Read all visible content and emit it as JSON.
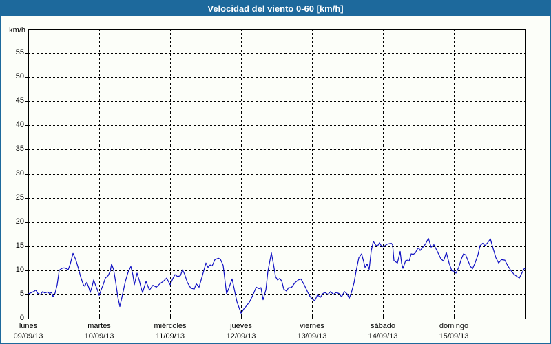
{
  "title": "Velocidad del viento 0-60 [km/h]",
  "y_axis": {
    "unit": "km/h",
    "ticks": [
      0,
      5,
      10,
      15,
      20,
      25,
      30,
      35,
      40,
      45,
      50,
      55
    ],
    "max": 60
  },
  "x_axis": {
    "days": [
      {
        "name": "lunes",
        "date": "09/09/13"
      },
      {
        "name": "martes",
        "date": "10/09/13"
      },
      {
        "name": "miércoles",
        "date": "11/09/13"
      },
      {
        "name": "jueves",
        "date": "12/09/13"
      },
      {
        "name": "viernes",
        "date": "13/09/13"
      },
      {
        "name": "sábado",
        "date": "14/09/13"
      },
      {
        "name": "domingo",
        "date": "15/09/13"
      }
    ]
  },
  "colors": {
    "titlebar": "#1d699c",
    "border": "#1d699c",
    "background": "#fcfef9",
    "grid": "#000000",
    "axis": "#000000",
    "text": "#000000",
    "title_text": "#ffffff",
    "line": "#0f0fc3"
  },
  "chart_data": {
    "type": "line",
    "title": "Velocidad del viento 0-60 [km/h]",
    "ylabel": "km/h",
    "ylim": [
      0,
      60
    ],
    "grid": "dashed, every 5 km/h horizontal, every day vertical",
    "legend": "none",
    "x_unit": "days since Monday 09/09/13 00:00 (0 to 7)",
    "categories": [
      "lunes 09/09/13",
      "martes 10/09/13",
      "miércoles 11/09/13",
      "jueves 12/09/13",
      "viernes 13/09/13",
      "sábado 14/09/13",
      "domingo 15/09/13"
    ],
    "series": [
      {
        "name": "Velocidad del viento",
        "points": [
          [
            0.0,
            5.1
          ],
          [
            0.049,
            5.4
          ],
          [
            0.078,
            5.6
          ],
          [
            0.107,
            5.9
          ],
          [
            0.136,
            5.2
          ],
          [
            0.175,
            5.0
          ],
          [
            0.204,
            5.6
          ],
          [
            0.233,
            5.3
          ],
          [
            0.272,
            5.5
          ],
          [
            0.301,
            5.2
          ],
          [
            0.33,
            5.4
          ],
          [
            0.35,
            4.5
          ],
          [
            0.379,
            5.3
          ],
          [
            0.408,
            7.0
          ],
          [
            0.437,
            10.0
          ],
          [
            0.476,
            10.4
          ],
          [
            0.505,
            10.5
          ],
          [
            0.544,
            10.3
          ],
          [
            0.563,
            10.1
          ],
          [
            0.592,
            11.3
          ],
          [
            0.631,
            13.5
          ],
          [
            0.67,
            12.2
          ],
          [
            0.709,
            10.3
          ],
          [
            0.738,
            8.7
          ],
          [
            0.777,
            7.0
          ],
          [
            0.796,
            6.7
          ],
          [
            0.825,
            7.5
          ],
          [
            0.854,
            6.4
          ],
          [
            0.874,
            5.4
          ],
          [
            0.903,
            6.8
          ],
          [
            0.922,
            8.0
          ],
          [
            0.951,
            6.8
          ],
          [
            0.971,
            6.1
          ],
          [
            1.0,
            4.8
          ],
          [
            1.029,
            6.0
          ],
          [
            1.058,
            7.1
          ],
          [
            1.087,
            8.4
          ],
          [
            1.126,
            8.9
          ],
          [
            1.155,
            9.8
          ],
          [
            1.175,
            11.3
          ],
          [
            1.204,
            10.1
          ],
          [
            1.233,
            7.5
          ],
          [
            1.262,
            4.5
          ],
          [
            1.291,
            2.5
          ],
          [
            1.32,
            4.4
          ],
          [
            1.369,
            7.7
          ],
          [
            1.408,
            9.6
          ],
          [
            1.447,
            10.8
          ],
          [
            1.476,
            9.0
          ],
          [
            1.495,
            7.0
          ],
          [
            1.534,
            9.4
          ],
          [
            1.563,
            8.0
          ],
          [
            1.592,
            6.3
          ],
          [
            1.612,
            5.4
          ],
          [
            1.66,
            7.7
          ],
          [
            1.709,
            5.9
          ],
          [
            1.757,
            6.9
          ],
          [
            1.806,
            6.5
          ],
          [
            1.854,
            7.2
          ],
          [
            1.903,
            7.7
          ],
          [
            1.951,
            8.4
          ],
          [
            2.0,
            7.0
          ],
          [
            2.039,
            8.3
          ],
          [
            2.068,
            9.1
          ],
          [
            2.107,
            8.7
          ],
          [
            2.146,
            8.9
          ],
          [
            2.175,
            10.1
          ],
          [
            2.204,
            9.2
          ],
          [
            2.243,
            7.5
          ],
          [
            2.291,
            6.3
          ],
          [
            2.34,
            6.1
          ],
          [
            2.369,
            7.2
          ],
          [
            2.408,
            6.5
          ],
          [
            2.456,
            9.0
          ],
          [
            2.505,
            11.5
          ],
          [
            2.534,
            10.6
          ],
          [
            2.563,
            11.1
          ],
          [
            2.592,
            10.9
          ],
          [
            2.631,
            12.2
          ],
          [
            2.68,
            12.5
          ],
          [
            2.709,
            12.3
          ],
          [
            2.748,
            11.0
          ],
          [
            2.796,
            5.1
          ],
          [
            2.835,
            6.6
          ],
          [
            2.874,
            8.2
          ],
          [
            2.913,
            5.5
          ],
          [
            2.942,
            3.5
          ],
          [
            3.0,
            1.1
          ],
          [
            3.039,
            2.0
          ],
          [
            3.068,
            2.5
          ],
          [
            3.117,
            3.4
          ],
          [
            3.165,
            4.8
          ],
          [
            3.214,
            6.5
          ],
          [
            3.252,
            6.2
          ],
          [
            3.281,
            6.4
          ],
          [
            3.311,
            3.9
          ],
          [
            3.35,
            6.0
          ],
          [
            3.379,
            9.8
          ],
          [
            3.427,
            13.6
          ],
          [
            3.456,
            11.3
          ],
          [
            3.485,
            8.7
          ],
          [
            3.515,
            8.0
          ],
          [
            3.544,
            8.3
          ],
          [
            3.573,
            7.8
          ],
          [
            3.602,
            6.1
          ],
          [
            3.641,
            5.7
          ],
          [
            3.67,
            6.4
          ],
          [
            3.709,
            6.4
          ],
          [
            3.757,
            7.4
          ],
          [
            3.806,
            8.0
          ],
          [
            3.845,
            8.2
          ],
          [
            3.893,
            6.9
          ],
          [
            3.942,
            5.4
          ],
          [
            3.971,
            4.6
          ],
          [
            4.0,
            4.1
          ],
          [
            4.039,
            3.7
          ],
          [
            4.078,
            4.9
          ],
          [
            4.117,
            4.4
          ],
          [
            4.155,
            5.2
          ],
          [
            4.184,
            5.4
          ],
          [
            4.223,
            5.0
          ],
          [
            4.262,
            5.6
          ],
          [
            4.301,
            5.0
          ],
          [
            4.34,
            5.4
          ],
          [
            4.379,
            5.2
          ],
          [
            4.417,
            4.5
          ],
          [
            4.456,
            5.6
          ],
          [
            4.495,
            5.1
          ],
          [
            4.524,
            4.2
          ],
          [
            4.553,
            5.3
          ],
          [
            4.592,
            7.4
          ],
          [
            4.621,
            9.8
          ],
          [
            4.66,
            12.6
          ],
          [
            4.699,
            13.4
          ],
          [
            4.728,
            11.8
          ],
          [
            4.748,
            10.6
          ],
          [
            4.777,
            11.3
          ],
          [
            4.806,
            10.2
          ],
          [
            4.835,
            14.0
          ],
          [
            4.864,
            16.0
          ],
          [
            4.893,
            15.3
          ],
          [
            4.922,
            15.0
          ],
          [
            4.951,
            15.7
          ],
          [
            4.971,
            15.2
          ],
          [
            5.0,
            14.9
          ],
          [
            5.029,
            15.1
          ],
          [
            5.058,
            15.4
          ],
          [
            5.087,
            15.5
          ],
          [
            5.117,
            15.6
          ],
          [
            5.136,
            15.3
          ],
          [
            5.155,
            12.0
          ],
          [
            5.184,
            11.7
          ],
          [
            5.204,
            11.5
          ],
          [
            5.243,
            13.9
          ],
          [
            5.262,
            11.5
          ],
          [
            5.282,
            10.4
          ],
          [
            5.32,
            12.0
          ],
          [
            5.35,
            12.1
          ],
          [
            5.369,
            11.9
          ],
          [
            5.398,
            13.4
          ],
          [
            5.427,
            13.3
          ],
          [
            5.456,
            13.6
          ],
          [
            5.485,
            14.4
          ],
          [
            5.505,
            14.6
          ],
          [
            5.524,
            14.1
          ],
          [
            5.563,
            14.8
          ],
          [
            5.602,
            15.5
          ],
          [
            5.641,
            16.6
          ],
          [
            5.68,
            14.8
          ],
          [
            5.718,
            15.3
          ],
          [
            5.767,
            13.9
          ],
          [
            5.816,
            12.4
          ],
          [
            5.854,
            11.9
          ],
          [
            5.893,
            13.7
          ],
          [
            5.932,
            11.5
          ],
          [
            5.971,
            9.9
          ],
          [
            6.0,
            9.8
          ],
          [
            6.029,
            9.4
          ],
          [
            6.068,
            10.6
          ],
          [
            6.107,
            12.4
          ],
          [
            6.136,
            13.4
          ],
          [
            6.165,
            13.2
          ],
          [
            6.204,
            11.8
          ],
          [
            6.233,
            10.8
          ],
          [
            6.262,
            10.3
          ],
          [
            6.301,
            11.6
          ],
          [
            6.34,
            13.2
          ],
          [
            6.369,
            15.1
          ],
          [
            6.408,
            15.6
          ],
          [
            6.437,
            15.1
          ],
          [
            6.476,
            15.7
          ],
          [
            6.515,
            16.5
          ],
          [
            6.553,
            14.5
          ],
          [
            6.592,
            12.6
          ],
          [
            6.631,
            11.5
          ],
          [
            6.67,
            12.2
          ],
          [
            6.718,
            12.1
          ],
          [
            6.757,
            11.0
          ],
          [
            6.796,
            10.1
          ],
          [
            6.845,
            9.2
          ],
          [
            6.883,
            8.8
          ],
          [
            6.922,
            8.4
          ],
          [
            6.961,
            9.5
          ],
          [
            6.99,
            10.3
          ],
          [
            7.0,
            10.4
          ]
        ]
      }
    ]
  }
}
